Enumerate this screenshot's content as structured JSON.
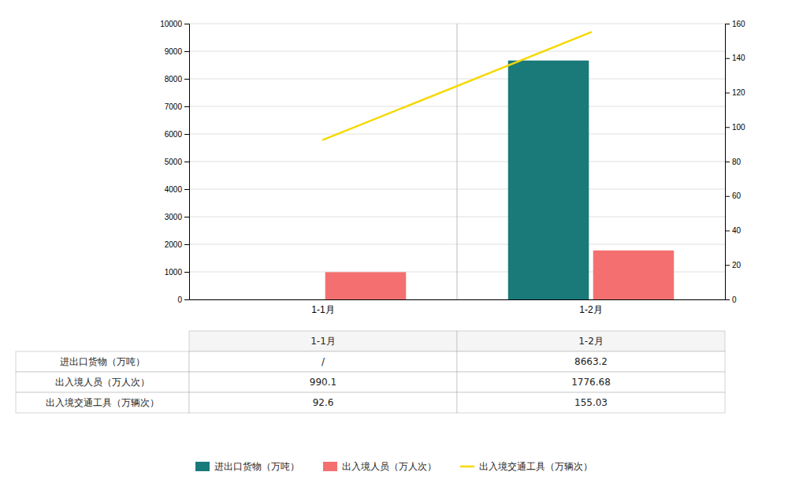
{
  "chart_data": {
    "type": "bar",
    "categories": [
      "1-1月",
      "1-2月"
    ],
    "series": [
      {
        "name": "进出口货物（万吨）",
        "type": "bar",
        "color": "#1a7a7a",
        "values": [
          null,
          8663.2
        ]
      },
      {
        "name": "出入境人员（万人次）",
        "type": "bar",
        "color": "#f47070",
        "values": [
          990.1,
          1776.68
        ]
      },
      {
        "name": "出入境交通工具（万辆次）",
        "type": "line",
        "axis": "y2",
        "color": "#f5d800",
        "values": [
          92.6,
          155.03
        ]
      }
    ],
    "ylim": [
      0,
      10000
    ],
    "yticks": [
      0,
      1000,
      2000,
      3000,
      4000,
      5000,
      6000,
      7000,
      8000,
      9000,
      10000
    ],
    "y2lim": [
      0,
      160
    ],
    "y2ticks": [
      0,
      20,
      40,
      60,
      80,
      100,
      120,
      140,
      160
    ],
    "grid": true,
    "legend": "bottom",
    "table": {
      "row_labels": [
        "进出口货物（万吨）",
        "出入境人员（万人次）",
        "出入境交通工具（万辆次）"
      ],
      "col_labels": [
        "1-1月",
        "1-2月"
      ],
      "values": [
        [
          "/",
          "8663.2"
        ],
        [
          "990.1",
          "1776.68"
        ],
        [
          "92.6",
          "155.03"
        ]
      ]
    }
  }
}
